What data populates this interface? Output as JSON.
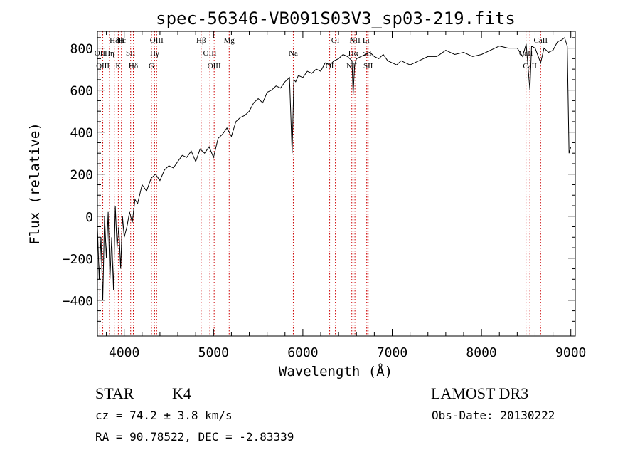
{
  "chart_data": {
    "type": "line",
    "title": "spec-56346-VB091S03V3_sp03-219.fits",
    "xlabel": "Wavelength (Å)",
    "ylabel": "Flux (relative)",
    "xlim": [
      3700,
      9050
    ],
    "ylim": [
      -570,
      880
    ],
    "x_ticks": [
      4000,
      5000,
      6000,
      7000,
      8000,
      9000
    ],
    "x_tick_labels": [
      "4000",
      "5000",
      "6000",
      "7000",
      "8000",
      "9000"
    ],
    "y_ticks": [
      -400,
      -200,
      0,
      200,
      400,
      600,
      800
    ],
    "y_tick_labels": [
      "−400",
      "−200",
      "0",
      "200",
      "400",
      "600",
      "800"
    ],
    "series": [
      {
        "name": "flux",
        "x": [
          3700,
          3720,
          3740,
          3760,
          3780,
          3800,
          3820,
          3840,
          3860,
          3880,
          3900,
          3920,
          3940,
          3960,
          3980,
          4000,
          4030,
          4060,
          4090,
          4120,
          4150,
          4200,
          4250,
          4300,
          4350,
          4400,
          4450,
          4500,
          4550,
          4600,
          4650,
          4700,
          4750,
          4800,
          4850,
          4900,
          4950,
          5000,
          5050,
          5100,
          5150,
          5200,
          5250,
          5300,
          5350,
          5400,
          5450,
          5500,
          5550,
          5600,
          5650,
          5700,
          5750,
          5800,
          5850,
          5880,
          5900,
          5920,
          5950,
          6000,
          6050,
          6100,
          6150,
          6200,
          6250,
          6300,
          6350,
          6400,
          6450,
          6500,
          6550,
          6563,
          6580,
          6600,
          6650,
          6700,
          6750,
          6800,
          6850,
          6900,
          6950,
          7000,
          7050,
          7100,
          7150,
          7200,
          7300,
          7400,
          7500,
          7600,
          7700,
          7800,
          7900,
          8000,
          8100,
          8200,
          8300,
          8400,
          8460,
          8500,
          8542,
          8560,
          8600,
          8662,
          8700,
          8750,
          8800,
          8850,
          8900,
          8930,
          8960,
          8980,
          9000
        ],
        "values": [
          -50,
          -300,
          -100,
          -400,
          0,
          -200,
          20,
          -300,
          -100,
          -350,
          50,
          -150,
          -50,
          -250,
          0,
          -100,
          -50,
          20,
          -30,
          80,
          60,
          150,
          120,
          180,
          200,
          170,
          220,
          240,
          230,
          260,
          290,
          280,
          310,
          260,
          320,
          300,
          330,
          280,
          370,
          390,
          420,
          380,
          450,
          470,
          480,
          500,
          540,
          560,
          540,
          590,
          600,
          620,
          610,
          640,
          660,
          300,
          650,
          640,
          670,
          660,
          690,
          680,
          700,
          690,
          730,
          720,
          740,
          750,
          770,
          760,
          740,
          580,
          720,
          750,
          760,
          770,
          780,
          760,
          750,
          770,
          740,
          730,
          720,
          740,
          730,
          720,
          740,
          760,
          760,
          790,
          770,
          780,
          760,
          770,
          790,
          810,
          800,
          800,
          760,
          820,
          600,
          810,
          800,
          730,
          800,
          780,
          790,
          830,
          840,
          850,
          810,
          300,
          330
        ]
      }
    ],
    "line_labels": [
      {
        "name": "Hδ",
        "x": 3889
      },
      {
        "name": "OII",
        "x": 3727
      },
      {
        "name": "OIII",
        "x": 3760
      },
      {
        "name": "Hε",
        "x": 3970
      },
      {
        "name": "Hη",
        "x": 3835
      },
      {
        "name": "K",
        "x": 3934
      },
      {
        "name": "H",
        "x": 3969
      },
      {
        "name": "SII",
        "x": 4072
      },
      {
        "name": "Hδ",
        "x": 4102
      },
      {
        "name": "OIII",
        "x": 4363
      },
      {
        "name": "Hγ",
        "x": 4340
      },
      {
        "name": "G",
        "x": 4305
      },
      {
        "name": "Hβ",
        "x": 4861
      },
      {
        "name": "OIII",
        "x": 4959
      },
      {
        "name": "OIII",
        "x": 5007
      },
      {
        "name": "Mg",
        "x": 5175
      },
      {
        "name": "Na",
        "x": 5893
      },
      {
        "name": "OI",
        "x": 6300
      },
      {
        "name": "OI",
        "x": 6364
      },
      {
        "name": "Hα",
        "x": 6563
      },
      {
        "name": "NII",
        "x": 6548
      },
      {
        "name": "NII",
        "x": 6583
      },
      {
        "name": "SII",
        "x": 6717
      },
      {
        "name": "SII",
        "x": 6731
      },
      {
        "name": "Li",
        "x": 6708
      },
      {
        "name": "CaII",
        "x": 8498
      },
      {
        "name": "CaII",
        "x": 8542
      },
      {
        "name": "CaII",
        "x": 8662
      }
    ]
  },
  "info": {
    "class": "STAR",
    "subclass": "K4",
    "survey": "LAMOST DR3",
    "redshift": "cz = 74.2 ± 3.8 km/s",
    "obs_date": "Obs-Date: 20130222",
    "coords": "RA =  90.78522, DEC =  -2.83339"
  }
}
